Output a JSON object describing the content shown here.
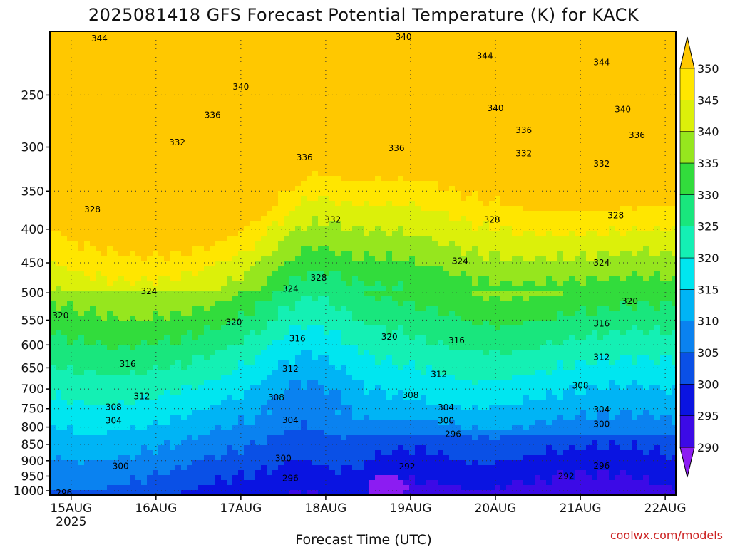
{
  "chart_data": {
    "type": "heatmap",
    "title": "2025081418 GFS Forecast Potential Temperature (K) for KACK",
    "xlabel": "Forecast Time (UTC)",
    "ylabel": "",
    "x_ticks": [
      {
        "date": "2025-08-15",
        "label": "15AUG",
        "sublabel": "2025"
      },
      {
        "date": "2025-08-16",
        "label": "16AUG",
        "sublabel": ""
      },
      {
        "date": "2025-08-17",
        "label": "17AUG",
        "sublabel": ""
      },
      {
        "date": "2025-08-18",
        "label": "18AUG",
        "sublabel": ""
      },
      {
        "date": "2025-08-19",
        "label": "19AUG",
        "sublabel": ""
      },
      {
        "date": "2025-08-20",
        "label": "20AUG",
        "sublabel": ""
      },
      {
        "date": "2025-08-21",
        "label": "21AUG",
        "sublabel": ""
      },
      {
        "date": "2025-08-22",
        "label": "22AUG",
        "sublabel": ""
      }
    ],
    "xlim": [
      "2025-08-14 18:00",
      "2025-08-22 03:00"
    ],
    "y_ticks": [
      250,
      300,
      350,
      400,
      450,
      500,
      550,
      600,
      650,
      700,
      750,
      800,
      850,
      900,
      950,
      1000
    ],
    "y_scale": "log",
    "y_inverted": true,
    "ylim": [
      1015,
      200
    ],
    "grid": "dotted",
    "colorbar": {
      "levels": [
        290,
        295,
        300,
        305,
        310,
        315,
        320,
        325,
        330,
        335,
        340,
        345,
        350
      ],
      "colors": [
        "#8c1cf2",
        "#3c0ae6",
        "#0a14e1",
        "#0a50e6",
        "#0a82f0",
        "#00b4f5",
        "#00e6f0",
        "#14f0b4",
        "#19e67d",
        "#32dc3c",
        "#96e61e",
        "#dcf00a",
        "#ffe600",
        "#ffc800"
      ],
      "extend": "both",
      "position": "right"
    },
    "contour_interval": 4,
    "contour_labels": [
      {
        "date": "2025-08-15 08:00",
        "p": 205,
        "value": "344"
      },
      {
        "date": "2025-08-17 00:00",
        "p": 243,
        "value": "340"
      },
      {
        "date": "2025-08-18 22:00",
        "p": 204,
        "value": "340"
      },
      {
        "date": "2025-08-19 21:00",
        "p": 218,
        "value": "344"
      },
      {
        "date": "2025-08-21 06:00",
        "p": 223,
        "value": "344"
      },
      {
        "date": "2025-08-16 16:00",
        "p": 268,
        "value": "336"
      },
      {
        "date": "2025-08-20 00:00",
        "p": 262,
        "value": "340"
      },
      {
        "date": "2025-08-21 12:00",
        "p": 263,
        "value": "340"
      },
      {
        "date": "2025-08-16 06:00",
        "p": 295,
        "value": "332"
      },
      {
        "date": "2025-08-17 18:00",
        "p": 311,
        "value": "336"
      },
      {
        "date": "2025-08-18 20:00",
        "p": 301,
        "value": "336"
      },
      {
        "date": "2025-08-20 08:00",
        "p": 283,
        "value": "336"
      },
      {
        "date": "2025-08-20 08:00",
        "p": 307,
        "value": "332"
      },
      {
        "date": "2025-08-21 06:00",
        "p": 318,
        "value": "332"
      },
      {
        "date": "2025-08-21 16:00",
        "p": 288,
        "value": "336"
      },
      {
        "date": "2025-08-15 06:00",
        "p": 373,
        "value": "328"
      },
      {
        "date": "2025-08-18 02:00",
        "p": 387,
        "value": "332"
      },
      {
        "date": "2025-08-19 23:00",
        "p": 387,
        "value": "328"
      },
      {
        "date": "2025-08-21 10:00",
        "p": 381,
        "value": "328"
      },
      {
        "date": "2025-08-17 22:00",
        "p": 474,
        "value": "328"
      },
      {
        "date": "2025-08-19 14:00",
        "p": 447,
        "value": "324"
      },
      {
        "date": "2025-08-21 06:00",
        "p": 450,
        "value": "324"
      },
      {
        "date": "2025-08-15 22:00",
        "p": 497,
        "value": "324"
      },
      {
        "date": "2025-08-17 14:00",
        "p": 493,
        "value": "324"
      },
      {
        "date": "2025-08-21 14:00",
        "p": 515,
        "value": "320"
      },
      {
        "date": "2025-08-14 21:00",
        "p": 541,
        "value": "320"
      },
      {
        "date": "2025-08-16 22:00",
        "p": 554,
        "value": "320"
      },
      {
        "date": "2025-08-18 18:00",
        "p": 583,
        "value": "320"
      },
      {
        "date": "2025-08-19 13:00",
        "p": 591,
        "value": "316"
      },
      {
        "date": "2025-08-21 06:00",
        "p": 557,
        "value": "316"
      },
      {
        "date": "2025-08-17 16:00",
        "p": 587,
        "value": "316"
      },
      {
        "date": "2025-08-15 16:00",
        "p": 641,
        "value": "316"
      },
      {
        "date": "2025-08-17 14:00",
        "p": 653,
        "value": "312"
      },
      {
        "date": "2025-08-19 08:00",
        "p": 665,
        "value": "312"
      },
      {
        "date": "2025-08-21 06:00",
        "p": 626,
        "value": "312"
      },
      {
        "date": "2025-08-15 20:00",
        "p": 718,
        "value": "312"
      },
      {
        "date": "2025-08-17 10:00",
        "p": 721,
        "value": "308"
      },
      {
        "date": "2025-08-19 00:00",
        "p": 716,
        "value": "308"
      },
      {
        "date": "2025-08-21 00:00",
        "p": 692,
        "value": "308"
      },
      {
        "date": "2025-08-15 12:00",
        "p": 746,
        "value": "308"
      },
      {
        "date": "2025-08-15 12:00",
        "p": 782,
        "value": "304"
      },
      {
        "date": "2025-08-17 14:00",
        "p": 781,
        "value": "304"
      },
      {
        "date": "2025-08-19 10:00",
        "p": 747,
        "value": "304"
      },
      {
        "date": "2025-08-21 06:00",
        "p": 752,
        "value": "304"
      },
      {
        "date": "2025-08-19 10:00",
        "p": 782,
        "value": "300"
      },
      {
        "date": "2025-08-19 12:00",
        "p": 820,
        "value": "296"
      },
      {
        "date": "2025-08-21 06:00",
        "p": 792,
        "value": "300"
      },
      {
        "date": "2025-08-15 14:00",
        "p": 917,
        "value": "300"
      },
      {
        "date": "2025-08-17 12:00",
        "p": 893,
        "value": "300"
      },
      {
        "date": "2025-08-17 14:00",
        "p": 957,
        "value": "296"
      },
      {
        "date": "2025-08-21 06:00",
        "p": 916,
        "value": "296"
      },
      {
        "date": "2025-08-18 23:00",
        "p": 919,
        "value": "292"
      },
      {
        "date": "2025-08-20 20:00",
        "p": 950,
        "value": "292"
      },
      {
        "date": "2025-08-14 22:00",
        "p": 1008,
        "value": "296"
      }
    ]
  },
  "credit": "coolwx.com/models",
  "colors": {
    "ground": "#a0522d",
    "axis": "#000000",
    "credit": "#cc2222"
  }
}
